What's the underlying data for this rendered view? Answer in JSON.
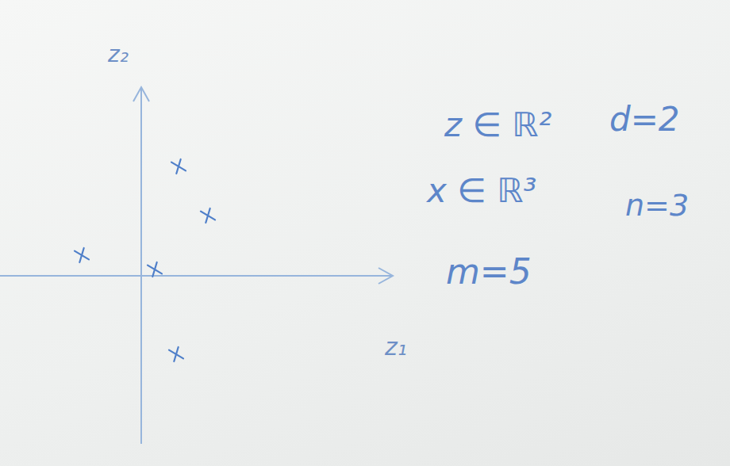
{
  "chart_data": {
    "type": "scatter",
    "x_label": "z₁",
    "y_label": "z₂",
    "series": [
      {
        "name": "z",
        "color": "#4f7fc9",
        "marker": "x",
        "x": [
          0.47,
          0.84,
          -0.75,
          0.17,
          0.44
        ],
        "values": [
          1.38,
          0.76,
          0.26,
          0.08,
          -0.99
        ]
      }
    ],
    "xlim": [
      -1.78,
      3.17
    ],
    "ylim": [
      -2.12,
      2.38
    ],
    "tick_labels": false,
    "grid": false,
    "annotations": [
      "z ∈ ℝ²",
      "d=2",
      "x ∈ ℝ³",
      "n=3",
      "m=5"
    ]
  }
}
